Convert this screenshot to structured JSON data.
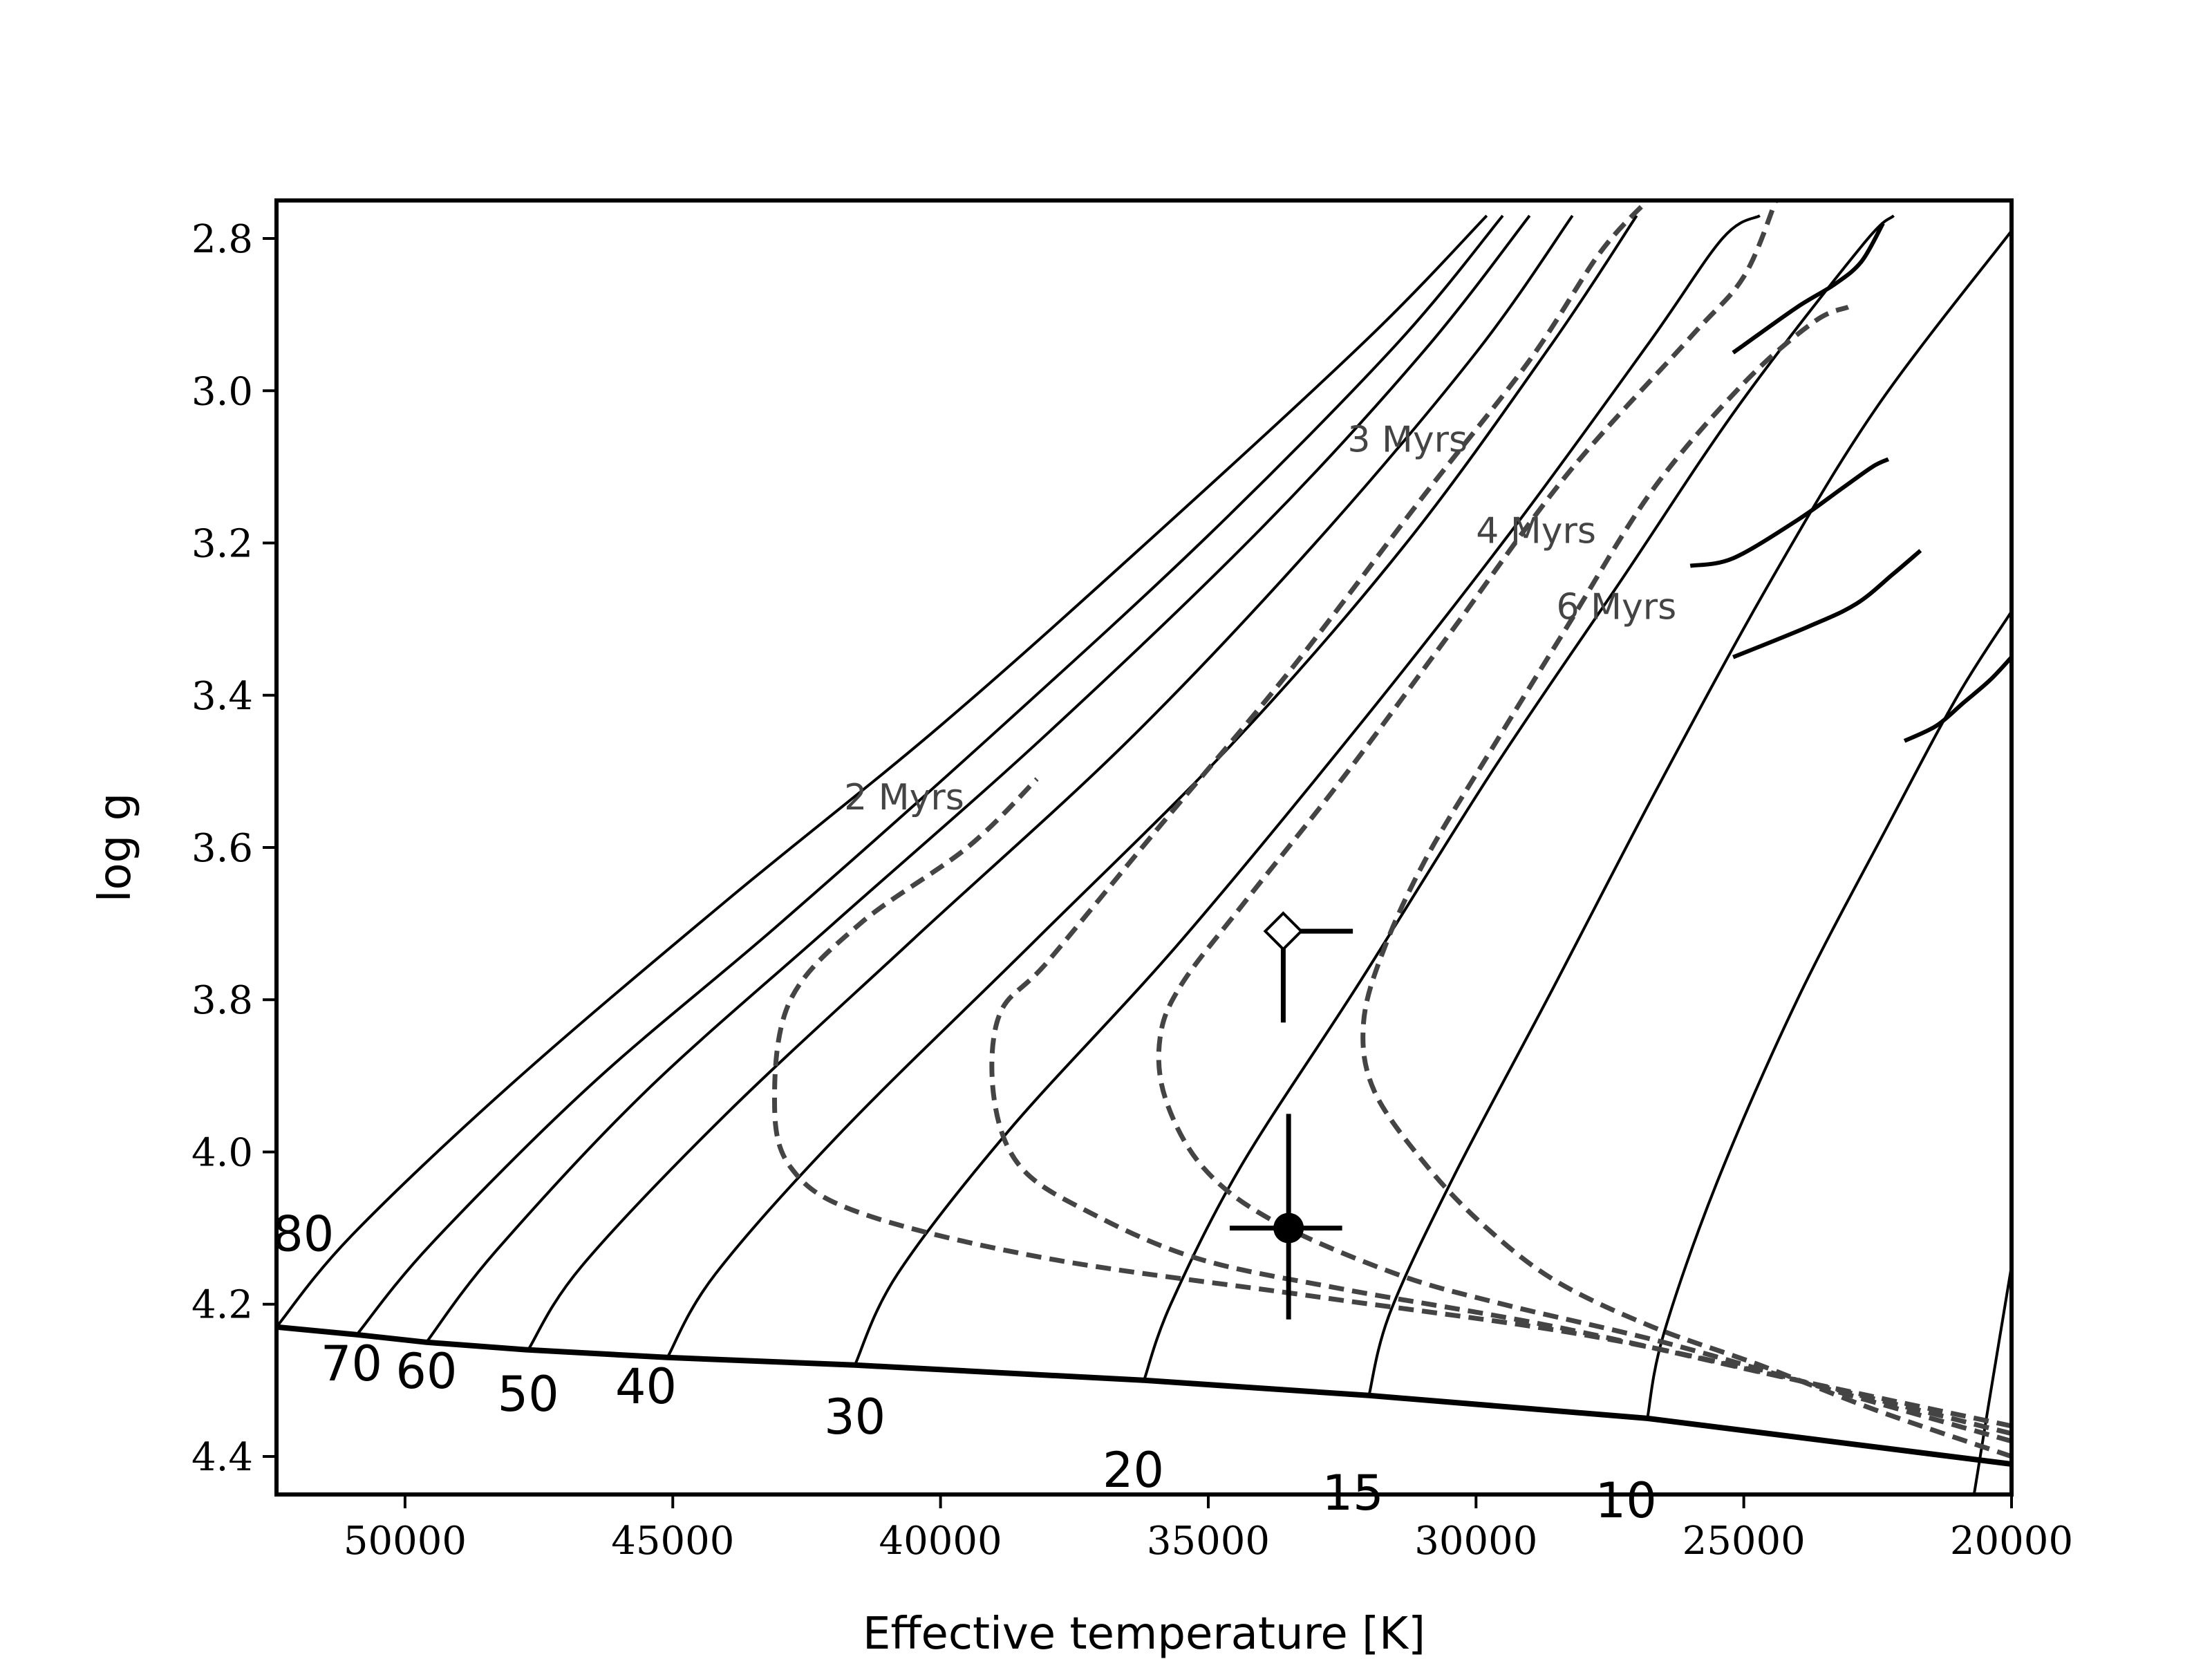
{
  "chart_data": {
    "type": "line",
    "xlabel": "Effective temperature [K]",
    "ylabel": "log g",
    "xlim": [
      52400,
      20000
    ],
    "ylim": [
      4.45,
      2.75
    ],
    "xticks": [
      50000,
      45000,
      40000,
      35000,
      30000,
      25000,
      20000
    ],
    "xtick_labels": [
      "50000",
      "45000",
      "40000",
      "35000",
      "30000",
      "25000",
      "20000"
    ],
    "yticks": [
      2.8,
      3.0,
      3.2,
      3.4,
      3.6,
      3.8,
      4.0,
      4.2,
      4.4
    ],
    "ytick_labels": [
      "2.8",
      "3.0",
      "3.2",
      "3.4",
      "3.6",
      "3.8",
      "4.0",
      "4.2",
      "4.4"
    ],
    "zams": [
      [
        52400,
        4.23
      ],
      [
        50900,
        4.24
      ],
      [
        49600,
        4.25
      ],
      [
        47700,
        4.26
      ],
      [
        45100,
        4.27
      ],
      [
        41600,
        4.28
      ],
      [
        36200,
        4.3
      ],
      [
        32000,
        4.32
      ],
      [
        26800,
        4.35
      ],
      [
        20000,
        4.41
      ]
    ],
    "tracks": [
      {
        "name": "80",
        "points": [
          [
            52400,
            4.23
          ],
          [
            51000,
            4.11
          ],
          [
            48000,
            3.91
          ],
          [
            44000,
            3.67
          ],
          [
            40000,
            3.44
          ],
          [
            36000,
            3.19
          ],
          [
            32000,
            2.93
          ],
          [
            29800,
            2.77
          ]
        ]
      },
      {
        "name": "70",
        "points": [
          [
            50900,
            4.24
          ],
          [
            49500,
            4.12
          ],
          [
            46500,
            3.91
          ],
          [
            43000,
            3.7
          ],
          [
            39000,
            3.45
          ],
          [
            35000,
            3.19
          ],
          [
            31500,
            2.94
          ],
          [
            29500,
            2.77
          ]
        ]
      },
      {
        "name": "60",
        "points": [
          [
            49600,
            4.25
          ],
          [
            48300,
            4.13
          ],
          [
            45500,
            3.92
          ],
          [
            42000,
            3.7
          ],
          [
            38000,
            3.45
          ],
          [
            34000,
            3.18
          ],
          [
            31000,
            2.95
          ],
          [
            29000,
            2.77
          ]
        ]
      },
      {
        "name": "50",
        "points": [
          [
            47700,
            4.26
          ],
          [
            46700,
            4.15
          ],
          [
            44000,
            3.95
          ],
          [
            40500,
            3.72
          ],
          [
            36500,
            3.46
          ],
          [
            33000,
            3.2
          ],
          [
            30000,
            2.95
          ],
          [
            28200,
            2.77
          ]
        ]
      },
      {
        "name": "40",
        "points": [
          [
            45100,
            4.27
          ],
          [
            44200,
            4.16
          ],
          [
            41800,
            3.97
          ],
          [
            38200,
            3.72
          ],
          [
            34500,
            3.46
          ],
          [
            31300,
            3.2
          ],
          [
            28600,
            2.94
          ],
          [
            27000,
            2.77
          ]
        ]
      },
      {
        "name": "30",
        "points": [
          [
            41600,
            4.28
          ],
          [
            40800,
            4.16
          ],
          [
            38700,
            3.97
          ],
          [
            35600,
            3.73
          ],
          [
            32300,
            3.45
          ],
          [
            29400,
            3.19
          ],
          [
            26800,
            2.94
          ],
          [
            25400,
            2.8
          ],
          [
            24700,
            2.77
          ]
        ]
      },
      {
        "name": "20",
        "points": [
          [
            36200,
            4.3
          ],
          [
            35700,
            4.2
          ],
          [
            34400,
            4.02
          ],
          [
            32200,
            3.78
          ],
          [
            29700,
            3.5
          ],
          [
            27300,
            3.25
          ],
          [
            25100,
            3.02
          ],
          [
            22800,
            2.81
          ],
          [
            22200,
            2.77
          ]
        ]
      },
      {
        "name": "15",
        "points": [
          [
            32000,
            4.32
          ],
          [
            31600,
            4.21
          ],
          [
            30400,
            4.03
          ],
          [
            28600,
            3.79
          ],
          [
            26600,
            3.52
          ],
          [
            24500,
            3.25
          ],
          [
            22500,
            3.02
          ],
          [
            20000,
            2.79
          ]
        ]
      },
      {
        "name": "10",
        "points": [
          [
            26800,
            4.35
          ],
          [
            26500,
            4.24
          ],
          [
            25500,
            4.04
          ],
          [
            24000,
            3.8
          ],
          [
            22300,
            3.57
          ],
          [
            21000,
            3.4
          ],
          [
            20000,
            3.29
          ]
        ]
      },
      {
        "name": "extra",
        "points": [
          [
            20700,
            4.45
          ],
          [
            20400,
            4.32
          ],
          [
            20000,
            4.15
          ]
        ]
      }
    ],
    "track_hooks": [
      {
        "name": "20",
        "points": [
          [
            22400,
            2.78
          ],
          [
            22800,
            2.83
          ],
          [
            23300,
            2.86
          ],
          [
            24000,
            2.89
          ],
          [
            25000,
            2.94
          ],
          [
            25200,
            2.95
          ]
        ]
      },
      {
        "name": "15",
        "points": [
          [
            22300,
            3.09
          ],
          [
            22600,
            3.1
          ],
          [
            23200,
            3.13
          ],
          [
            24000,
            3.17
          ],
          [
            25200,
            3.22
          ],
          [
            26000,
            3.23
          ]
        ]
      },
      {
        "name": "10",
        "points": [
          [
            21700,
            3.21
          ],
          [
            22200,
            3.24
          ],
          [
            22900,
            3.28
          ],
          [
            23800,
            3.31
          ],
          [
            25200,
            3.35
          ]
        ]
      },
      {
        "name": "extra",
        "points": [
          [
            20000,
            3.35
          ],
          [
            20400,
            3.38
          ],
          [
            20900,
            3.41
          ],
          [
            21400,
            3.44
          ],
          [
            22000,
            3.46
          ]
        ]
      }
    ],
    "isochrones": [
      {
        "name": "2 Myrs",
        "label": "2 Myrs",
        "label_at": [
          41800,
          3.55
        ],
        "points": [
          [
            20000,
            4.37
          ],
          [
            24000,
            4.3
          ],
          [
            28000,
            4.24
          ],
          [
            33000,
            4.19
          ],
          [
            38000,
            4.14
          ],
          [
            41500,
            4.08
          ],
          [
            42800,
            4.02
          ],
          [
            43100,
            3.93
          ],
          [
            42800,
            3.8
          ],
          [
            41500,
            3.7
          ],
          [
            39500,
            3.6
          ],
          [
            38200,
            3.51
          ]
        ]
      },
      {
        "name": "3 Myrs",
        "label": "3 Myrs",
        "label_at": [
          32400,
          3.08
        ],
        "points": [
          [
            20000,
            4.36
          ],
          [
            24000,
            4.3
          ],
          [
            28500,
            4.23
          ],
          [
            32500,
            4.18
          ],
          [
            35200,
            4.14
          ],
          [
            37200,
            4.08
          ],
          [
            38500,
            4.02
          ],
          [
            39000,
            3.93
          ],
          [
            38900,
            3.82
          ],
          [
            38000,
            3.75
          ],
          [
            36000,
            3.58
          ],
          [
            33500,
            3.37
          ],
          [
            31000,
            3.14
          ],
          [
            29000,
            2.96
          ],
          [
            27700,
            2.82
          ],
          [
            26800,
            2.75
          ]
        ]
      },
      {
        "name": "4 Myrs",
        "label": "4 Myrs",
        "label_at": [
          30000,
          3.2
        ],
        "points": [
          [
            20000,
            4.38
          ],
          [
            23500,
            4.31
          ],
          [
            26500,
            4.25
          ],
          [
            29500,
            4.2
          ],
          [
            31500,
            4.16
          ],
          [
            33800,
            4.09
          ],
          [
            35100,
            4.02
          ],
          [
            35800,
            3.93
          ],
          [
            35900,
            3.85
          ],
          [
            35500,
            3.78
          ],
          [
            34300,
            3.67
          ],
          [
            32500,
            3.51
          ],
          [
            30500,
            3.32
          ],
          [
            28300,
            3.11
          ],
          [
            26000,
            2.93
          ],
          [
            25000,
            2.85
          ],
          [
            24400,
            2.75
          ]
        ]
      },
      {
        "name": "6 Myrs",
        "label": "6 Myrs",
        "label_at": [
          28500,
          3.3
        ],
        "points": [
          [
            20000,
            4.4
          ],
          [
            22500,
            4.34
          ],
          [
            24700,
            4.28
          ],
          [
            26700,
            4.23
          ],
          [
            28500,
            4.17
          ],
          [
            29800,
            4.1
          ],
          [
            30900,
            4.02
          ],
          [
            31900,
            3.92
          ],
          [
            32100,
            3.83
          ],
          [
            31700,
            3.73
          ],
          [
            30900,
            3.61
          ],
          [
            29700,
            3.47
          ],
          [
            28300,
            3.31
          ],
          [
            26700,
            3.13
          ],
          [
            25000,
            2.99
          ],
          [
            23700,
            2.91
          ],
          [
            23050,
            2.89
          ]
        ]
      }
    ],
    "mass_labels": [
      {
        "text": "80",
        "at": [
          51900,
          4.13
        ]
      },
      {
        "text": "70",
        "at": [
          51000,
          4.3
        ]
      },
      {
        "text": "60",
        "at": [
          49600,
          4.31
        ]
      },
      {
        "text": "50",
        "at": [
          47700,
          4.34
        ]
      },
      {
        "text": "40",
        "at": [
          45500,
          4.33
        ]
      },
      {
        "text": "30",
        "at": [
          41600,
          4.37
        ]
      },
      {
        "text": "20",
        "at": [
          36400,
          4.44
        ]
      },
      {
        "text": "15",
        "at": [
          32300,
          4.47
        ]
      },
      {
        "text": "10",
        "at": [
          27200,
          4.48
        ]
      }
    ],
    "points": [
      {
        "name": "filled-circle",
        "teff": 33500,
        "logg": 4.1,
        "xerr_low": 1100,
        "xerr_high": 1000,
        "yerr_low": 0.12,
        "yerr_high": 0.15,
        "marker": "circle"
      },
      {
        "name": "open-diamond",
        "teff": 33600,
        "logg": 3.71,
        "xerr_low": 0,
        "xerr_high": 1300,
        "yerr_low": 0.12,
        "yerr_high": 0.0,
        "marker": "diamond"
      }
    ]
  }
}
